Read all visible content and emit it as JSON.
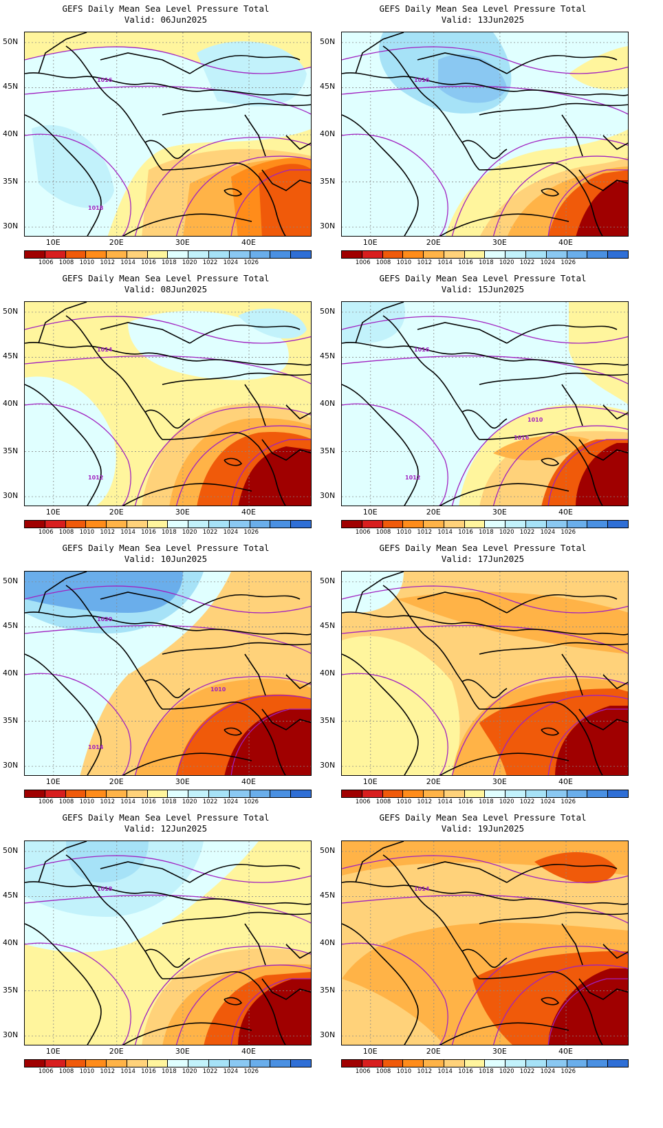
{
  "title_line": "GEFS Daily Mean Sea Level Pressure Total",
  "panels": [
    {
      "valid": "Valid: 06Jun2025",
      "col": 0,
      "row": 0,
      "scheme": "a",
      "contour_labels": [
        "1016",
        "1018"
      ]
    },
    {
      "valid": "Valid: 13Jun2025",
      "col": 1,
      "row": 0,
      "scheme": "b",
      "contour_labels": [
        "1016"
      ]
    },
    {
      "valid": "Valid: 08Jun2025",
      "col": 0,
      "row": 1,
      "scheme": "c",
      "contour_labels": [
        "1014",
        "1012"
      ]
    },
    {
      "valid": "Valid: 15Jun2025",
      "col": 1,
      "row": 1,
      "scheme": "d",
      "contour_labels": [
        "1016",
        "1012",
        "1010",
        "1016"
      ]
    },
    {
      "valid": "Valid: 10Jun2025",
      "col": 0,
      "row": 2,
      "scheme": "e",
      "contour_labels": [
        "1020",
        "1014",
        "1010"
      ]
    },
    {
      "valid": "Valid: 17Jun2025",
      "col": 1,
      "row": 2,
      "scheme": "f",
      "contour_labels": []
    },
    {
      "valid": "Valid: 12Jun2025",
      "col": 0,
      "row": 3,
      "scheme": "g",
      "contour_labels": [
        "1018"
      ]
    },
    {
      "valid": "Valid: 19Jun2025",
      "col": 1,
      "row": 3,
      "scheme": "h",
      "contour_labels": [
        "1014"
      ]
    }
  ],
  "lat_labels": [
    "50N",
    "45N",
    "40N",
    "35N",
    "30N"
  ],
  "lon_labels": [
    "10E",
    "20E",
    "30E",
    "40E"
  ],
  "colorbar": {
    "colors": [
      "#a00000",
      "#d81e1e",
      "#f05a0a",
      "#ff8c1a",
      "#ffb347",
      "#ffd27a",
      "#fff59d",
      "#e0ffff",
      "#c2f2fb",
      "#a6e2f7",
      "#8ac8f2",
      "#6aaeeb",
      "#4a90e2",
      "#2f6fd6"
    ],
    "labels": [
      "1006",
      "1008",
      "1010",
      "1012",
      "1014",
      "1016",
      "1018",
      "1020",
      "1022",
      "1024",
      "1026"
    ]
  }
}
